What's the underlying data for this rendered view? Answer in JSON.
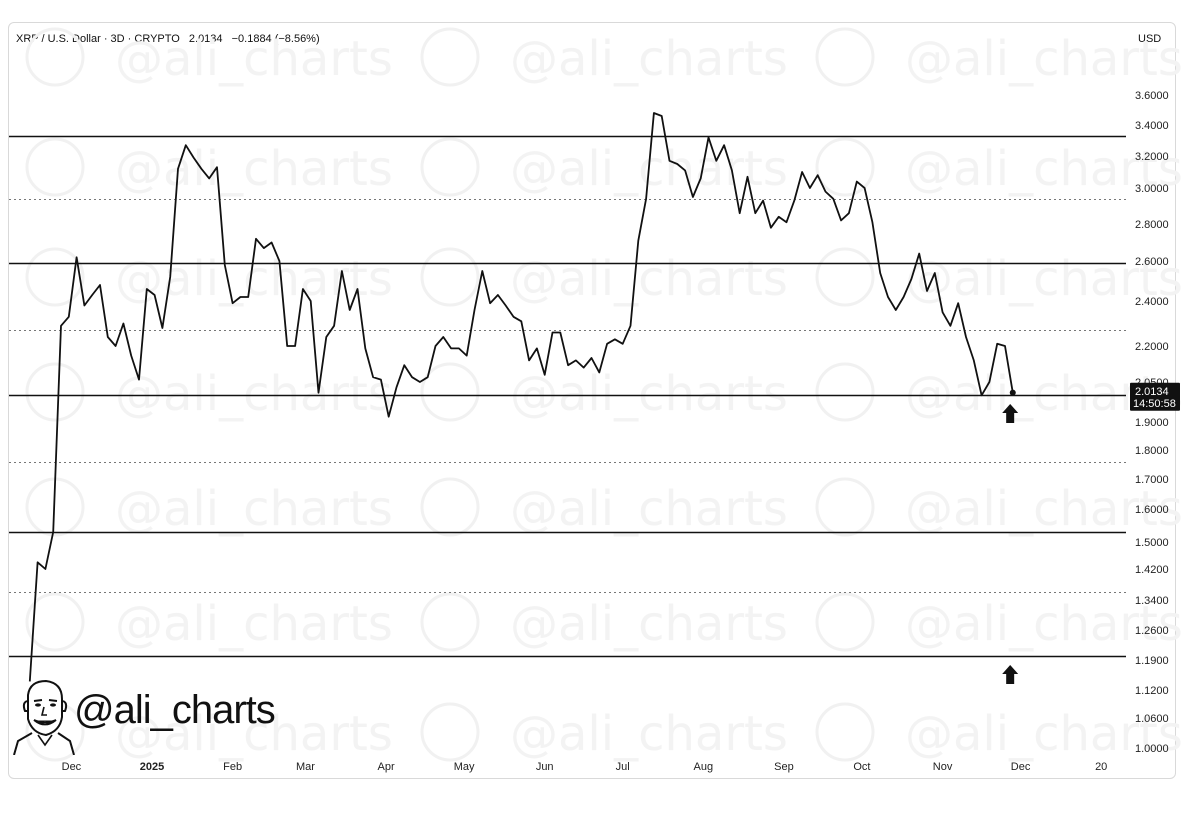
{
  "header": {
    "symbol": "XRP / U.S. Dollar · 3D · CRYPTO",
    "last": "2.0134",
    "change": "−0.1884",
    "change_pct": "(−8.56%)",
    "currency": "USD"
  },
  "watermark": "@ali_charts",
  "brand": {
    "handle": "@ali_charts"
  },
  "chart_data": {
    "type": "line",
    "ylim": [
      1.0,
      3.6
    ],
    "y_ticks": [
      {
        "label": "3.6000",
        "value": 3.6
      },
      {
        "label": "3.4000",
        "value": 3.4
      },
      {
        "label": "3.2000",
        "value": 3.2
      },
      {
        "label": "3.0000",
        "value": 3.0
      },
      {
        "label": "2.8000",
        "value": 2.8
      },
      {
        "label": "2.6000",
        "value": 2.6
      },
      {
        "label": "2.4000",
        "value": 2.4
      },
      {
        "label": "2.2000",
        "value": 2.2
      },
      {
        "label": "2.0500",
        "value": 2.05
      },
      {
        "label": "1.9000",
        "value": 1.9
      },
      {
        "label": "1.8000",
        "value": 1.8
      },
      {
        "label": "1.7000",
        "value": 1.7
      },
      {
        "label": "1.6000",
        "value": 1.6
      },
      {
        "label": "1.5000",
        "value": 1.5
      },
      {
        "label": "1.4200",
        "value": 1.42
      },
      {
        "label": "1.3400",
        "value": 1.34
      },
      {
        "label": "1.2600",
        "value": 1.26
      },
      {
        "label": "1.1900",
        "value": 1.19
      },
      {
        "label": "1.1200",
        "value": 1.12
      },
      {
        "label": "1.0600",
        "value": 1.06
      },
      {
        "label": "1.0000",
        "value": 1.0
      }
    ],
    "x_ticks": [
      "Dec",
      "2025",
      "Feb",
      "Mar",
      "Apr",
      "May",
      "Jun",
      "Jul",
      "Aug",
      "Sep",
      "Oct",
      "Nov",
      "Dec",
      "20"
    ],
    "x_tick_dates": [
      "2024-12-01",
      "2025-01-01",
      "2025-02-01",
      "2025-03-01",
      "2025-04-01",
      "2025-05-01",
      "2025-06-01",
      "2025-07-01",
      "2025-08-01",
      "2025-09-01",
      "2025-10-01",
      "2025-11-01",
      "2025-12-01",
      "2026-01-01"
    ],
    "x_range": [
      "2024-11-07",
      "2026-01-14"
    ],
    "price_label": "2.0134",
    "countdown": "14:50:58",
    "support_lines": [
      3.33,
      2.59,
      2.0,
      1.53,
      1.2
    ],
    "dotted_lines": [
      2.94,
      2.27,
      1.76,
      1.36
    ],
    "arrows": [
      {
        "date": "2025-11-27",
        "value": 1.93,
        "direction": "up"
      },
      {
        "date": "2025-11-27",
        "value": 1.155,
        "direction": "up"
      }
    ],
    "series": [
      {
        "values": [
          {
            "x": "2024-11-15",
            "y": 1.14
          },
          {
            "x": "2024-11-18",
            "y": 1.44
          },
          {
            "x": "2024-11-21",
            "y": 1.42
          },
          {
            "x": "2024-11-24",
            "y": 1.53
          },
          {
            "x": "2024-11-27",
            "y": 2.29
          },
          {
            "x": "2024-11-30",
            "y": 2.33
          },
          {
            "x": "2024-12-03",
            "y": 2.62
          },
          {
            "x": "2024-12-06",
            "y": 2.38
          },
          {
            "x": "2024-12-09",
            "y": 2.43
          },
          {
            "x": "2024-12-12",
            "y": 2.48
          },
          {
            "x": "2024-12-15",
            "y": 2.24
          },
          {
            "x": "2024-12-18",
            "y": 2.2
          },
          {
            "x": "2024-12-21",
            "y": 2.3
          },
          {
            "x": "2024-12-24",
            "y": 2.16
          },
          {
            "x": "2024-12-27",
            "y": 2.06
          },
          {
            "x": "2024-12-30",
            "y": 2.46
          },
          {
            "x": "2025-01-02",
            "y": 2.43
          },
          {
            "x": "2025-01-05",
            "y": 2.28
          },
          {
            "x": "2025-01-08",
            "y": 2.52
          },
          {
            "x": "2025-01-11",
            "y": 3.12
          },
          {
            "x": "2025-01-14",
            "y": 3.27
          },
          {
            "x": "2025-01-17",
            "y": 3.19
          },
          {
            "x": "2025-01-20",
            "y": 3.12
          },
          {
            "x": "2025-01-23",
            "y": 3.06
          },
          {
            "x": "2025-01-26",
            "y": 3.13
          },
          {
            "x": "2025-01-29",
            "y": 2.58
          },
          {
            "x": "2025-02-01",
            "y": 2.39
          },
          {
            "x": "2025-02-04",
            "y": 2.42
          },
          {
            "x": "2025-02-07",
            "y": 2.42
          },
          {
            "x": "2025-02-10",
            "y": 2.72
          },
          {
            "x": "2025-02-13",
            "y": 2.67
          },
          {
            "x": "2025-02-16",
            "y": 2.7
          },
          {
            "x": "2025-02-19",
            "y": 2.6
          },
          {
            "x": "2025-02-22",
            "y": 2.2
          },
          {
            "x": "2025-02-25",
            "y": 2.2
          },
          {
            "x": "2025-02-28",
            "y": 2.46
          },
          {
            "x": "2025-03-03",
            "y": 2.4
          },
          {
            "x": "2025-03-06",
            "y": 2.01
          },
          {
            "x": "2025-03-09",
            "y": 2.24
          },
          {
            "x": "2025-03-12",
            "y": 2.29
          },
          {
            "x": "2025-03-15",
            "y": 2.55
          },
          {
            "x": "2025-03-18",
            "y": 2.36
          },
          {
            "x": "2025-03-21",
            "y": 2.46
          },
          {
            "x": "2025-03-24",
            "y": 2.19
          },
          {
            "x": "2025-03-27",
            "y": 2.07
          },
          {
            "x": "2025-03-30",
            "y": 2.06
          },
          {
            "x": "2025-04-02",
            "y": 1.92
          },
          {
            "x": "2025-04-05",
            "y": 2.03
          },
          {
            "x": "2025-04-08",
            "y": 2.12
          },
          {
            "x": "2025-04-11",
            "y": 2.07
          },
          {
            "x": "2025-04-14",
            "y": 2.05
          },
          {
            "x": "2025-04-17",
            "y": 2.07
          },
          {
            "x": "2025-04-20",
            "y": 2.2
          },
          {
            "x": "2025-04-23",
            "y": 2.24
          },
          {
            "x": "2025-04-26",
            "y": 2.19
          },
          {
            "x": "2025-04-29",
            "y": 2.19
          },
          {
            "x": "2025-05-02",
            "y": 2.16
          },
          {
            "x": "2025-05-05",
            "y": 2.36
          },
          {
            "x": "2025-05-08",
            "y": 2.55
          },
          {
            "x": "2025-05-11",
            "y": 2.39
          },
          {
            "x": "2025-05-14",
            "y": 2.43
          },
          {
            "x": "2025-05-17",
            "y": 2.38
          },
          {
            "x": "2025-05-20",
            "y": 2.33
          },
          {
            "x": "2025-05-23",
            "y": 2.31
          },
          {
            "x": "2025-05-26",
            "y": 2.14
          },
          {
            "x": "2025-05-29",
            "y": 2.19
          },
          {
            "x": "2025-06-01",
            "y": 2.08
          },
          {
            "x": "2025-06-04",
            "y": 2.26
          },
          {
            "x": "2025-06-07",
            "y": 2.26
          },
          {
            "x": "2025-06-10",
            "y": 2.12
          },
          {
            "x": "2025-06-13",
            "y": 2.14
          },
          {
            "x": "2025-06-16",
            "y": 2.11
          },
          {
            "x": "2025-06-19",
            "y": 2.15
          },
          {
            "x": "2025-06-22",
            "y": 2.09
          },
          {
            "x": "2025-06-25",
            "y": 2.21
          },
          {
            "x": "2025-06-28",
            "y": 2.23
          },
          {
            "x": "2025-07-01",
            "y": 2.21
          },
          {
            "x": "2025-07-04",
            "y": 2.29
          },
          {
            "x": "2025-07-07",
            "y": 2.71
          },
          {
            "x": "2025-07-10",
            "y": 2.94
          },
          {
            "x": "2025-07-13",
            "y": 3.48
          },
          {
            "x": "2025-07-16",
            "y": 3.46
          },
          {
            "x": "2025-07-19",
            "y": 3.17
          },
          {
            "x": "2025-07-22",
            "y": 3.15
          },
          {
            "x": "2025-07-25",
            "y": 3.11
          },
          {
            "x": "2025-07-28",
            "y": 2.95
          },
          {
            "x": "2025-07-31",
            "y": 3.06
          },
          {
            "x": "2025-08-03",
            "y": 3.32
          },
          {
            "x": "2025-08-06",
            "y": 3.17
          },
          {
            "x": "2025-08-09",
            "y": 3.27
          },
          {
            "x": "2025-08-12",
            "y": 3.11
          },
          {
            "x": "2025-08-15",
            "y": 2.86
          },
          {
            "x": "2025-08-18",
            "y": 3.07
          },
          {
            "x": "2025-08-21",
            "y": 2.86
          },
          {
            "x": "2025-08-24",
            "y": 2.93
          },
          {
            "x": "2025-08-27",
            "y": 2.78
          },
          {
            "x": "2025-08-30",
            "y": 2.84
          },
          {
            "x": "2025-09-02",
            "y": 2.81
          },
          {
            "x": "2025-09-05",
            "y": 2.93
          },
          {
            "x": "2025-09-08",
            "y": 3.1
          },
          {
            "x": "2025-09-11",
            "y": 3.0
          },
          {
            "x": "2025-09-14",
            "y": 3.08
          },
          {
            "x": "2025-09-17",
            "y": 2.98
          },
          {
            "x": "2025-09-20",
            "y": 2.94
          },
          {
            "x": "2025-09-23",
            "y": 2.82
          },
          {
            "x": "2025-09-26",
            "y": 2.86
          },
          {
            "x": "2025-09-29",
            "y": 3.04
          },
          {
            "x": "2025-10-02",
            "y": 3.0
          },
          {
            "x": "2025-10-05",
            "y": 2.81
          },
          {
            "x": "2025-10-08",
            "y": 2.54
          },
          {
            "x": "2025-10-11",
            "y": 2.42
          },
          {
            "x": "2025-10-14",
            "y": 2.36
          },
          {
            "x": "2025-10-17",
            "y": 2.42
          },
          {
            "x": "2025-10-20",
            "y": 2.51
          },
          {
            "x": "2025-10-23",
            "y": 2.64
          },
          {
            "x": "2025-10-26",
            "y": 2.45
          },
          {
            "x": "2025-10-29",
            "y": 2.54
          },
          {
            "x": "2025-11-01",
            "y": 2.35
          },
          {
            "x": "2025-11-04",
            "y": 2.29
          },
          {
            "x": "2025-11-07",
            "y": 2.39
          },
          {
            "x": "2025-11-10",
            "y": 2.24
          },
          {
            "x": "2025-11-13",
            "y": 2.14
          },
          {
            "x": "2025-11-16",
            "y": 2.0
          },
          {
            "x": "2025-11-19",
            "y": 2.05
          },
          {
            "x": "2025-11-22",
            "y": 2.21
          },
          {
            "x": "2025-11-25",
            "y": 2.2
          },
          {
            "x": "2025-11-28",
            "y": 2.01
          }
        ]
      }
    ]
  }
}
